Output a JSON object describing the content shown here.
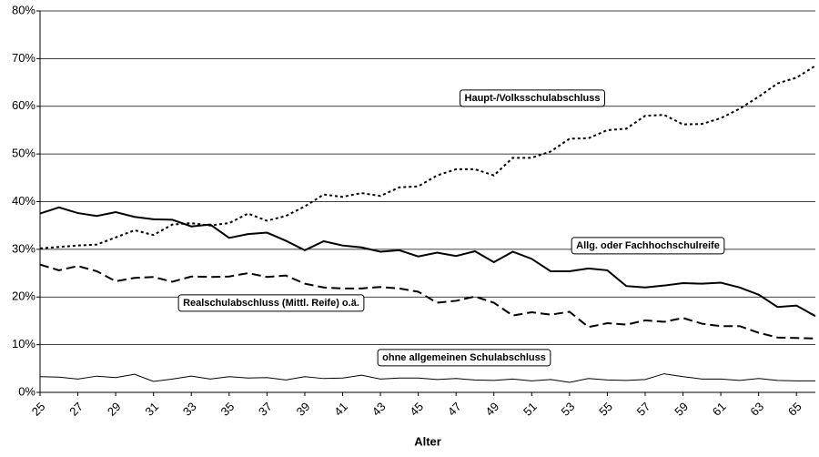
{
  "chart_data": {
    "type": "line",
    "x_label": "Alter",
    "x": [
      25,
      26,
      27,
      28,
      29,
      30,
      31,
      32,
      33,
      34,
      35,
      36,
      37,
      38,
      39,
      40,
      41,
      42,
      43,
      44,
      45,
      46,
      47,
      48,
      49,
      50,
      51,
      52,
      53,
      54,
      55,
      56,
      57,
      58,
      59,
      60,
      61,
      62,
      63,
      64,
      65,
      66
    ],
    "xlim": [
      25,
      66
    ],
    "xticks": [
      25,
      27,
      29,
      31,
      33,
      35,
      37,
      39,
      41,
      43,
      45,
      47,
      49,
      51,
      53,
      55,
      57,
      59,
      61,
      63,
      65
    ],
    "ylim": [
      0,
      80
    ],
    "yticks": [
      {
        "value": 0,
        "label": "0%"
      },
      {
        "value": 10,
        "label": "10%"
      },
      {
        "value": 20,
        "label": "20%"
      },
      {
        "value": 30,
        "label": "30%"
      },
      {
        "value": 40,
        "label": "40%"
      },
      {
        "value": 50,
        "label": "50%"
      },
      {
        "value": 60,
        "label": "60%"
      },
      {
        "value": 70,
        "label": "70%"
      },
      {
        "value": 80,
        "label": "80%"
      }
    ],
    "grid": true,
    "series": [
      {
        "name": "Haupt-/Volksschulabschluss",
        "color": "#000000",
        "dash": "3,3",
        "width": 2,
        "values": [
          30.2,
          30.5,
          30.8,
          31,
          32.5,
          34,
          33,
          35.2,
          35.5,
          35,
          35.5,
          37.5,
          36,
          37,
          39,
          41.5,
          41,
          41.8,
          41.2,
          43,
          43.2,
          45.5,
          46.8,
          46.8,
          45.5,
          49.2,
          49.2,
          50.5,
          53.2,
          53.3,
          55,
          55.3,
          58,
          58.2,
          56.2,
          56.3,
          57.5,
          59.5,
          62,
          64.8,
          66,
          68.5
        ]
      },
      {
        "name": "Allg. oder Fachhochschulreife",
        "color": "#000000",
        "dash": "none",
        "width": 2,
        "values": [
          37.5,
          38.8,
          37.6,
          37,
          37.8,
          36.8,
          36.3,
          36.2,
          34.8,
          35.2,
          32.4,
          33.2,
          33.5,
          31.8,
          29.8,
          31.7,
          30.8,
          30.4,
          29.5,
          29.8,
          28.5,
          29.3,
          28.6,
          29.6,
          27.3,
          29.5,
          28,
          25.4,
          25.4,
          26,
          25.6,
          22.3,
          22,
          22.4,
          22.9,
          22.8,
          23,
          22,
          20.5,
          17.9,
          18.2,
          16
        ]
      },
      {
        "name": "Realschulabschluss (Mittl. Reife) o.ä.",
        "color": "#000000",
        "dash": "10,5",
        "width": 2,
        "values": [
          26.8,
          25.6,
          26.5,
          25.4,
          23.3,
          24,
          24.2,
          23.2,
          24.3,
          24.2,
          24.3,
          25,
          24.2,
          24.5,
          22.8,
          22,
          21.8,
          21.8,
          22.1,
          21.8,
          21.1,
          18.8,
          19.2,
          20.1,
          18.8,
          16.1,
          16.8,
          16.3,
          16.9,
          13.7,
          14.5,
          14.2,
          15.1,
          14.8,
          15.6,
          14.4,
          13.9,
          13.9,
          12.5,
          11.5,
          11.4,
          11.3
        ]
      },
      {
        "name": "ohne allgemeinen Schulabschluss",
        "color": "#000000",
        "dash": "none",
        "width": 1,
        "values": [
          3.3,
          3.2,
          2.8,
          3.4,
          3.1,
          3.8,
          2.3,
          2.8,
          3.4,
          2.8,
          3.3,
          3,
          3.1,
          2.6,
          3.3,
          2.9,
          3,
          3.6,
          2.8,
          3,
          3,
          2.7,
          2.9,
          2.6,
          2.5,
          2.8,
          2.4,
          2.7,
          2.1,
          2.9,
          2.6,
          2.5,
          2.7,
          3.9,
          3.3,
          2.8,
          2.8,
          2.5,
          2.9,
          2.5,
          2.4,
          2.4
        ]
      }
    ]
  }
}
